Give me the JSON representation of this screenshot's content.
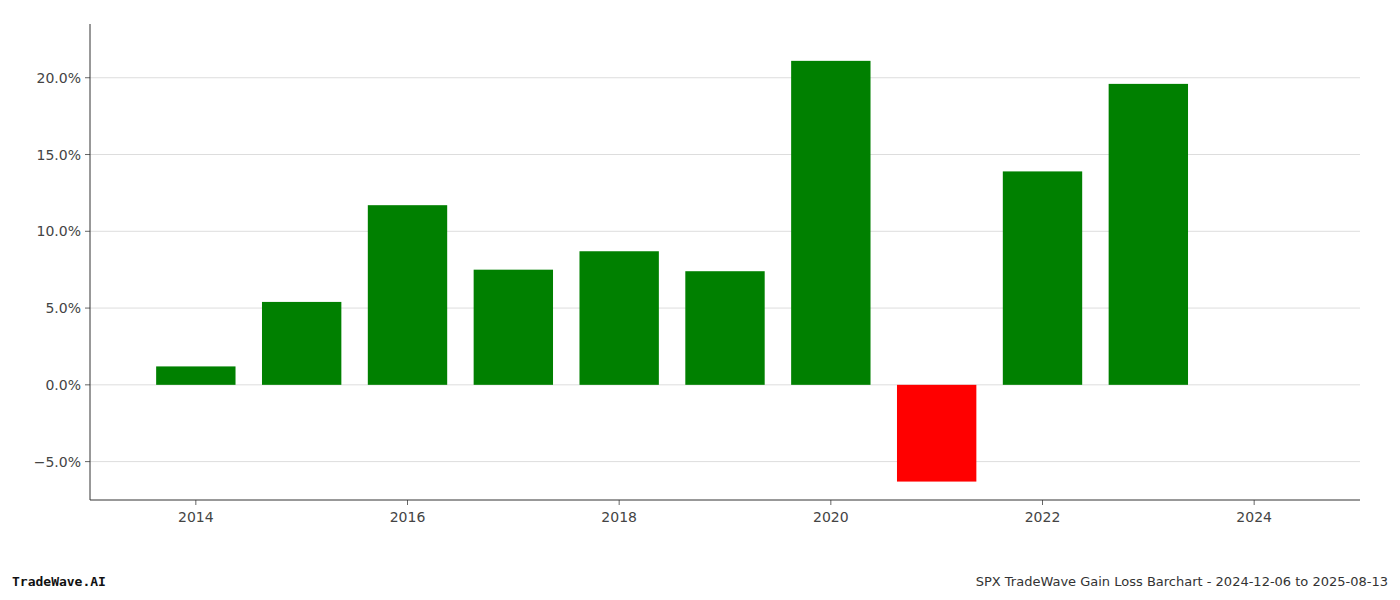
{
  "chart_data": {
    "type": "bar",
    "title": "SPX TradeWave Gain Loss Barchart - 2024-12-06 to 2025-08-13",
    "annotations": [
      "TradeWave.AI"
    ],
    "x": [
      2014,
      2015,
      2016,
      2017,
      2018,
      2019,
      2020,
      2021,
      2022,
      2023
    ],
    "values": [
      1.2,
      5.4,
      11.7,
      7.5,
      8.7,
      7.4,
      21.1,
      -6.3,
      13.9,
      19.6
    ],
    "colors": [
      "#008000",
      "#008000",
      "#008000",
      "#008000",
      "#008000",
      "#008000",
      "#008000",
      "#ff0000",
      "#008000",
      "#008000"
    ],
    "xlim": [
      2013.0,
      2025.0
    ],
    "xticks": [
      2014,
      2016,
      2018,
      2020,
      2022,
      2024
    ],
    "ylim": [
      -7.5,
      23.5
    ],
    "yticks": [
      {
        "value": -5.0,
        "label": "−5.0%"
      },
      {
        "value": 0.0,
        "label": "0.0%"
      },
      {
        "value": 5.0,
        "label": "5.0%"
      },
      {
        "value": 10.0,
        "label": "10.0%"
      },
      {
        "value": 15.0,
        "label": "15.0%"
      },
      {
        "value": 20.0,
        "label": "20.0%"
      }
    ],
    "grid": true
  }
}
